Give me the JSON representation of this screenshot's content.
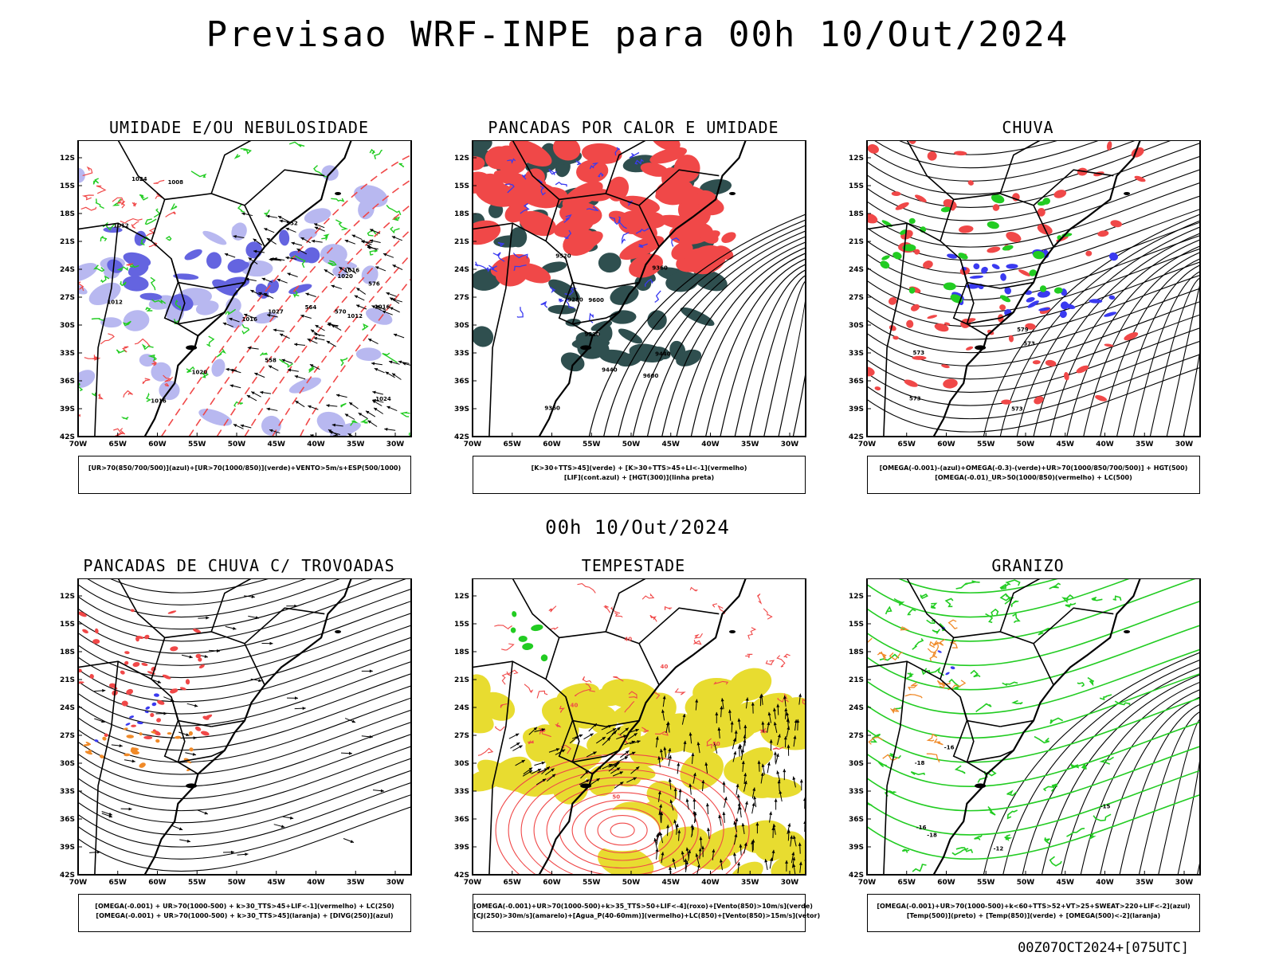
{
  "title": "Previsao WRF-INPE  para 00h 10/Out/2024",
  "mid_title": "00h 10/Out/2024",
  "footer": "00Z07OCT2024+[075UTC]",
  "lat_ticks": [
    "12S",
    "15S",
    "18S",
    "21S",
    "24S",
    "27S",
    "30S",
    "33S",
    "36S",
    "39S",
    "42S"
  ],
  "lon_ticks": [
    "70W",
    "65W",
    "60W",
    "55W",
    "50W",
    "45W",
    "40W",
    "35W",
    "30W"
  ],
  "colors": {
    "red": "#f04848",
    "green": "#22cc22",
    "blue": "#3a3af0",
    "lavender": "#b8b8f0",
    "violet": "#6464e0",
    "dark_teal": "#2f4f4f",
    "yellow": "#e8dc30",
    "orange": "#f08a28"
  },
  "panels": [
    {
      "id": "umidade",
      "title": "UMIDADE E/OU NEBULOSIDADE",
      "legend": [
        "[UR>70(850/700/500)](azul)+[UR>70(1000/850)](verde)+VENTO>5m/s+ESP(500/1000)"
      ],
      "labels": [
        "1016",
        "1012",
        "1008",
        "1012",
        "1016",
        "1024",
        "1012",
        "1016",
        "1020",
        "1024",
        "1016",
        "1020",
        "1027",
        "576",
        "570",
        "564",
        "558",
        "552"
      ]
    },
    {
      "id": "pancadas-calor",
      "title": "PANCADAS POR CALOR E UMIDADE",
      "legend": [
        "[K>30+TTS>45](verde) + [K>30+TTS>45+LI<-1](vermelho)",
        "[LIF](cont.azul) + [HGT(300)](linha preta)"
      ],
      "labels": [
        "9600",
        "9440",
        "9520",
        "9280",
        "9360",
        "9600",
        "9520",
        "9440",
        "9360"
      ]
    },
    {
      "id": "chuva",
      "title": "CHUVA",
      "legend": [
        "[OMEGA(-0.001)-(azul)+OMEGA(-0.3)-(verde)+UR>70(1000/850/700/500)] + HGT(500)",
        "[OMEGA(-0.01)_UR>50(1000/850)(vermelho) + LC(500)"
      ],
      "labels": [
        "573",
        "579",
        "573",
        "573",
        "573"
      ]
    },
    {
      "id": "trovoadas",
      "title": "PANCADAS DE CHUVA C/ TROVOADAS",
      "legend": [
        "[OMEGA(-0.001) + UR>70(1000-500) + k>30_TTS>45+LIF<-1](vermelho) + LC(250)",
        "[OMEGA(-0.001) + UR>70(1000-500) + k>30_TTS>45](laranja) + [DIVG(250)](azul)"
      ],
      "labels": []
    },
    {
      "id": "tempestade",
      "title": "TEMPESTADE",
      "legend": [
        "[OMEGA(-0.001)+UR>70(1000-500)+k>35_TTS>50+LIF<-4](roxo)+[Vento(850)>10m/s](verde)",
        "[CJ(250)>30m/s](amarelo)+[Agua_P(40-60mm)](vermelho)+LC(850)+[Vento(850)>15m/s](vetor)"
      ],
      "labels": [
        "40",
        "50",
        "40",
        "40",
        "50"
      ]
    },
    {
      "id": "granizo",
      "title": "GRANIZO",
      "legend": [
        "[OMEGA(-0.001)+UR>70(1000-500)+k<60+TTS>52+VT>25+SWEAT>220+LIF<-2](azul)",
        "[Temp(500)](preto) + [Temp(850)](verde) + [OMEGA(500)<-2](laranja)"
      ],
      "labels": [
        "-12",
        "-16",
        "-18",
        "-15",
        "-18",
        "-16"
      ]
    }
  ]
}
